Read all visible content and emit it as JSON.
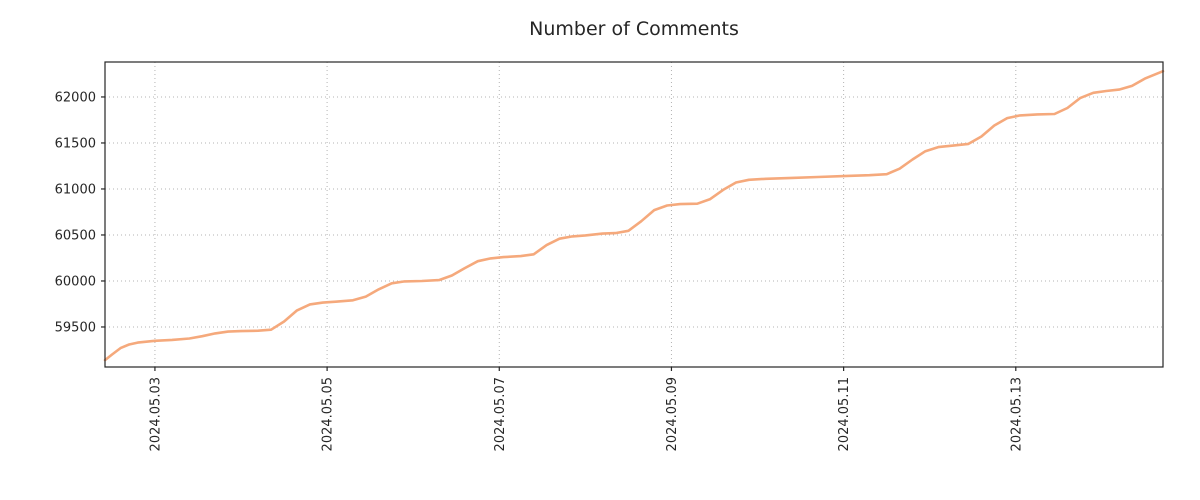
{
  "title": "Number of Comments",
  "chart_data": {
    "type": "line",
    "title": "Number of Comments",
    "xlabel": "",
    "ylabel": "",
    "grid": true,
    "legend": false,
    "x_unit": "day of 2024-05 (decimal)",
    "xlim": [
      2.42,
      14.71
    ],
    "ylim": [
      59065,
      62380
    ],
    "xticks": {
      "positions": [
        3,
        5,
        7,
        9,
        11,
        13
      ],
      "labels": [
        "2024.05.03",
        "2024.05.05",
        "2024.05.07",
        "2024.05.09",
        "2024.05.11",
        "2024.05.13"
      ]
    },
    "yticks": [
      59500,
      60000,
      60500,
      61000,
      61500,
      62000
    ],
    "series": [
      {
        "name": "Number of Comments",
        "color": "#f5a97c",
        "x": [
          2.42,
          2.5,
          2.6,
          2.7,
          2.8,
          3.0,
          3.2,
          3.4,
          3.55,
          3.7,
          3.85,
          4.0,
          4.2,
          4.35,
          4.5,
          4.65,
          4.8,
          4.95,
          5.1,
          5.3,
          5.45,
          5.6,
          5.75,
          5.9,
          6.1,
          6.3,
          6.45,
          6.6,
          6.75,
          6.9,
          7.05,
          7.25,
          7.4,
          7.55,
          7.7,
          7.85,
          8.0,
          8.2,
          8.35,
          8.5,
          8.65,
          8.8,
          8.95,
          9.1,
          9.3,
          9.45,
          9.6,
          9.75,
          9.9,
          10.1,
          10.4,
          10.7,
          11.0,
          11.3,
          11.5,
          11.65,
          11.8,
          11.95,
          12.1,
          12.3,
          12.45,
          12.6,
          12.75,
          12.9,
          13.05,
          13.25,
          13.45,
          13.6,
          13.75,
          13.9,
          14.05,
          14.2,
          14.35,
          14.5,
          14.71
        ],
        "y": [
          59140,
          59200,
          59270,
          59310,
          59330,
          59350,
          59360,
          59375,
          59400,
          59430,
          59450,
          59455,
          59460,
          59470,
          59560,
          59680,
          59745,
          59765,
          59775,
          59790,
          59830,
          59910,
          59975,
          59995,
          60000,
          60010,
          60060,
          60140,
          60215,
          60245,
          60260,
          60270,
          60290,
          60390,
          60460,
          60485,
          60495,
          60515,
          60520,
          60545,
          60650,
          60770,
          60820,
          60835,
          60840,
          60890,
          60990,
          61070,
          61100,
          61110,
          61120,
          61130,
          61140,
          61150,
          61160,
          61220,
          61320,
          61410,
          61455,
          61475,
          61490,
          61570,
          61690,
          61770,
          61800,
          61810,
          61815,
          61880,
          61990,
          62045,
          62065,
          62080,
          62120,
          62200,
          62280
        ]
      }
    ]
  }
}
